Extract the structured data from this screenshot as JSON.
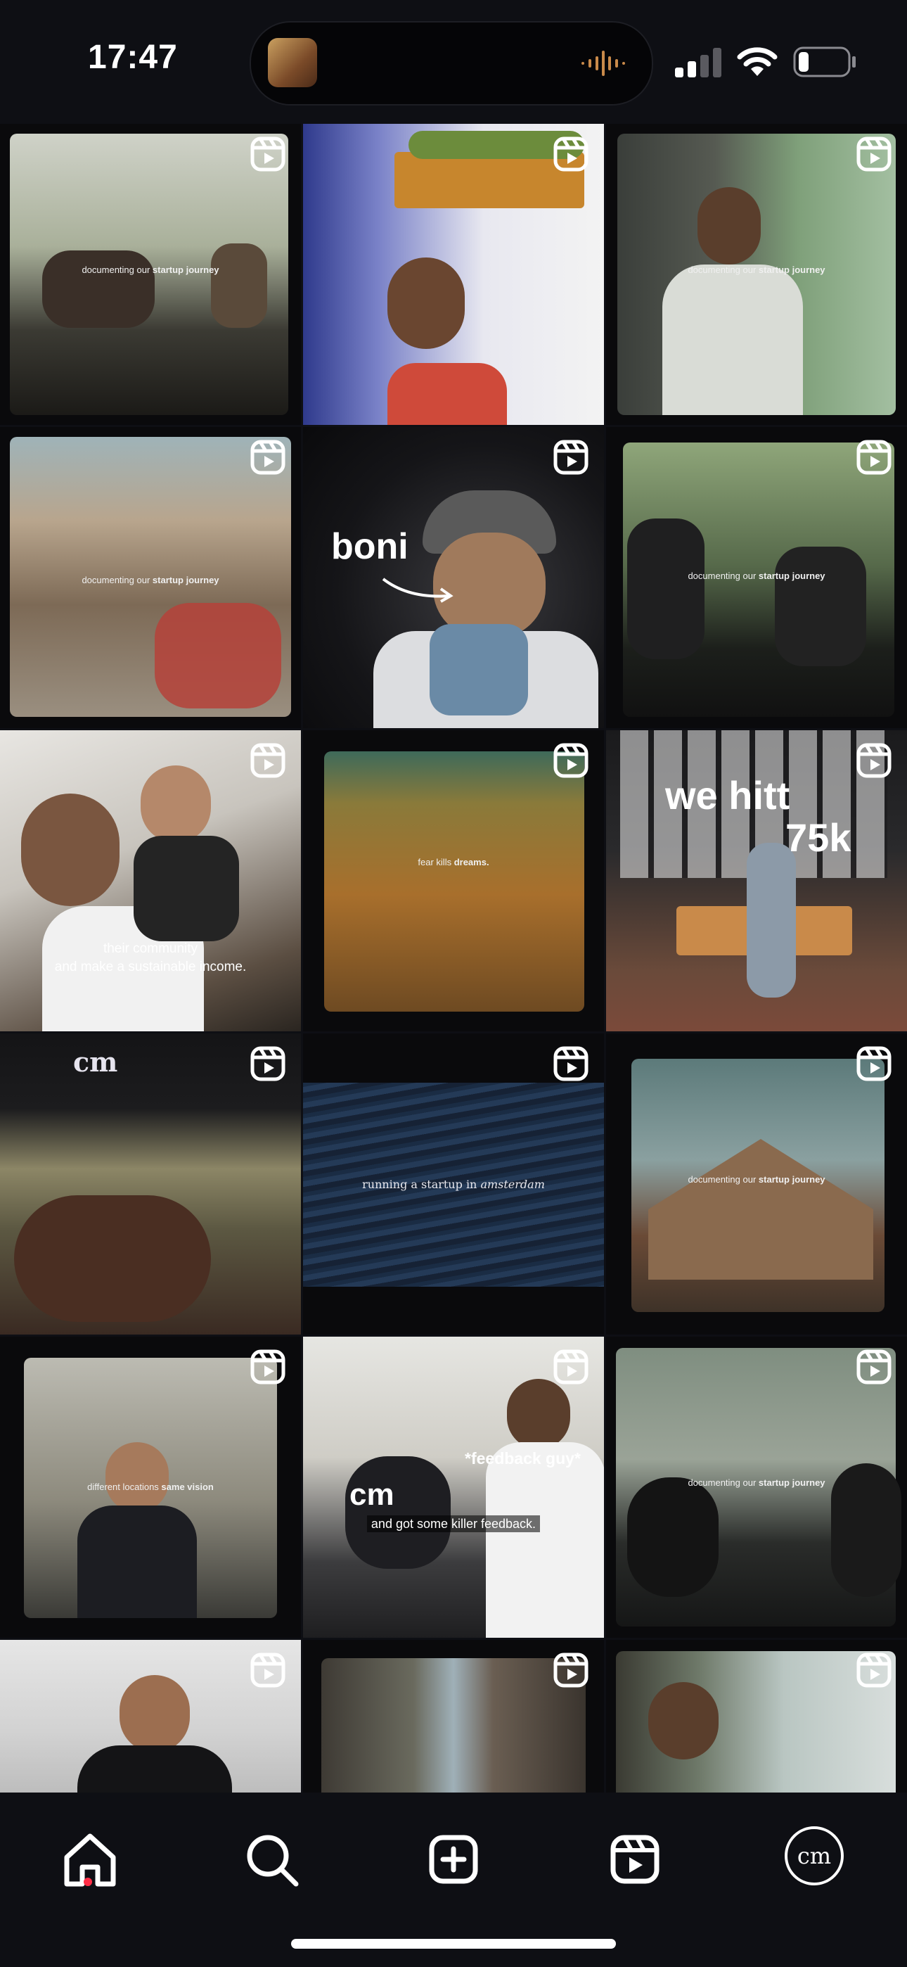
{
  "status": {
    "time": "17:47"
  },
  "tiles": [
    {
      "caption": "documenting our ",
      "caption_bold": "startup journey"
    },
    {
      "caption": "",
      "caption_bold": ""
    },
    {
      "caption": "documenting our ",
      "caption_bold": "startup journey"
    },
    {
      "caption": "documenting our ",
      "caption_bold": "startup journey"
    },
    {
      "caption": "boni",
      "caption_bold": ""
    },
    {
      "caption": "documenting our ",
      "caption_bold": "startup journey"
    },
    {
      "caption": "their community",
      "caption_bold": "and make a sustainable income."
    },
    {
      "caption": "fear kills ",
      "caption_bold": "dreams."
    },
    {
      "caption": "we hitt",
      "caption_bold": "75k"
    },
    {
      "caption": "cm",
      "caption_bold": ""
    },
    {
      "caption": "running a startup in ",
      "caption_bold": "amsterdam"
    },
    {
      "caption": "documenting our ",
      "caption_bold": "startup journey"
    },
    {
      "caption": "different locations ",
      "caption_bold": "same vision"
    },
    {
      "caption": "*feedback guy*",
      "caption_bold": "and got some killer feedback.",
      "extra": "cm"
    },
    {
      "caption": "documenting our ",
      "caption_bold": "startup journey"
    },
    {
      "caption": "",
      "caption_bold": ""
    },
    {
      "caption": "",
      "caption_bold": ""
    },
    {
      "caption": "",
      "caption_bold": ""
    }
  ],
  "nav": {
    "items": [
      "home-icon",
      "search-icon",
      "create-icon",
      "reels-icon",
      "profile-avatar"
    ],
    "avatar_text": "cm",
    "active_color": "#ff2d46"
  }
}
